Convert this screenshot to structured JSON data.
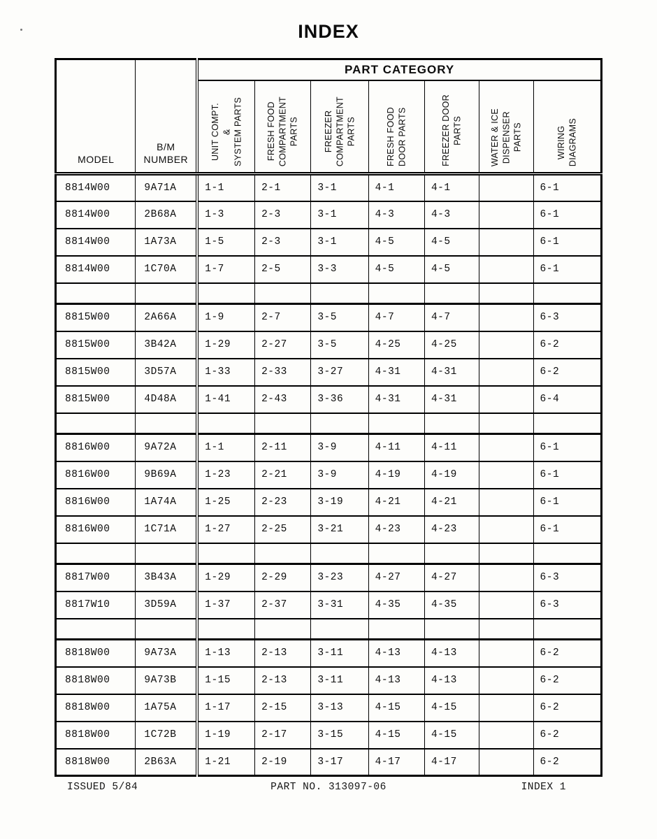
{
  "page": {
    "title": "INDEX",
    "footer": {
      "issued": "ISSUED 5/84",
      "part_no": "PART NO. 313097-06",
      "index": "INDEX 1"
    }
  },
  "table": {
    "part_category_header": "PART CATEGORY",
    "model_header": "MODEL",
    "bm_header": "B/M\nNUMBER",
    "category_columns": [
      "UNIT COMPT.\n&\nSYSTEM PARTS",
      "FRESH FOOD\nCOMPARTMENT\nPARTS",
      "FREEZER\nCOMPARTMENT\nPARTS",
      "FRESH FOOD\nDOOR PARTS",
      "FREEZER DOOR\nPARTS",
      "WATER & ICE\nDISPENSER\nPARTS",
      "WIRING\nDIAGRAMS"
    ],
    "sections": [
      {
        "rows": [
          {
            "model": "8814W00",
            "bm": "9A71A",
            "refs": [
              "1-1",
              "2-1",
              "3-1",
              "4-1",
              "4-1",
              "",
              "6-1"
            ]
          },
          {
            "model": "8814W00",
            "bm": "2B68A",
            "refs": [
              "1-3",
              "2-3",
              "3-1",
              "4-3",
              "4-3",
              "",
              "6-1"
            ]
          },
          {
            "model": "8814W00",
            "bm": "1A73A",
            "refs": [
              "1-5",
              "2-3",
              "3-1",
              "4-5",
              "4-5",
              "",
              "6-1"
            ]
          },
          {
            "model": "8814W00",
            "bm": "1C70A",
            "refs": [
              "1-7",
              "2-5",
              "3-3",
              "4-5",
              "4-5",
              "",
              "6-1"
            ]
          }
        ]
      },
      {
        "rows": [
          {
            "model": "8815W00",
            "bm": "2A66A",
            "refs": [
              "1-9",
              "2-7",
              "3-5",
              "4-7",
              "4-7",
              "",
              "6-3"
            ]
          },
          {
            "model": "8815W00",
            "bm": "3B42A",
            "refs": [
              "1-29",
              "2-27",
              "3-5",
              "4-25",
              "4-25",
              "",
              "6-2"
            ]
          },
          {
            "model": "8815W00",
            "bm": "3D57A",
            "refs": [
              "1-33",
              "2-33",
              "3-27",
              "4-31",
              "4-31",
              "",
              "6-2"
            ]
          },
          {
            "model": "8815W00",
            "bm": "4D48A",
            "refs": [
              "1-41",
              "2-43",
              "3-36",
              "4-31",
              "4-31",
              "",
              "6-4"
            ]
          }
        ]
      },
      {
        "rows": [
          {
            "model": "8816W00",
            "bm": "9A72A",
            "refs": [
              "1-1",
              "2-11",
              "3-9",
              "4-11",
              "4-11",
              "",
              "6-1"
            ]
          },
          {
            "model": "8816W00",
            "bm": "9B69A",
            "refs": [
              "1-23",
              "2-21",
              "3-9",
              "4-19",
              "4-19",
              "",
              "6-1"
            ]
          },
          {
            "model": "8816W00",
            "bm": "1A74A",
            "refs": [
              "1-25",
              "2-23",
              "3-19",
              "4-21",
              "4-21",
              "",
              "6-1"
            ]
          },
          {
            "model": "8816W00",
            "bm": "1C71A",
            "refs": [
              "1-27",
              "2-25",
              "3-21",
              "4-23",
              "4-23",
              "",
              "6-1"
            ]
          }
        ]
      },
      {
        "rows": [
          {
            "model": "8817W00",
            "bm": "3B43A",
            "refs": [
              "1-29",
              "2-29",
              "3-23",
              "4-27",
              "4-27",
              "",
              "6-3"
            ]
          },
          {
            "model": "8817W10",
            "bm": "3D59A",
            "refs": [
              "1-37",
              "2-37",
              "3-31",
              "4-35",
              "4-35",
              "",
              "6-3"
            ]
          }
        ]
      },
      {
        "rows": [
          {
            "model": "8818W00",
            "bm": "9A73A",
            "refs": [
              "1-13",
              "2-13",
              "3-11",
              "4-13",
              "4-13",
              "",
              "6-2"
            ]
          },
          {
            "model": "8818W00",
            "bm": "9A73B",
            "refs": [
              "1-15",
              "2-13",
              "3-11",
              "4-13",
              "4-13",
              "",
              "6-2"
            ]
          },
          {
            "model": "8818W00",
            "bm": "1A75A",
            "refs": [
              "1-17",
              "2-15",
              "3-13",
              "4-15",
              "4-15",
              "",
              "6-2"
            ]
          },
          {
            "model": "8818W00",
            "bm": "1C72B",
            "refs": [
              "1-19",
              "2-17",
              "3-15",
              "4-15",
              "4-15",
              "",
              "6-2"
            ]
          },
          {
            "model": "8818W00",
            "bm": "2B63A",
            "refs": [
              "1-21",
              "2-19",
              "3-17",
              "4-17",
              "4-17",
              "",
              "6-2"
            ]
          }
        ]
      }
    ]
  }
}
